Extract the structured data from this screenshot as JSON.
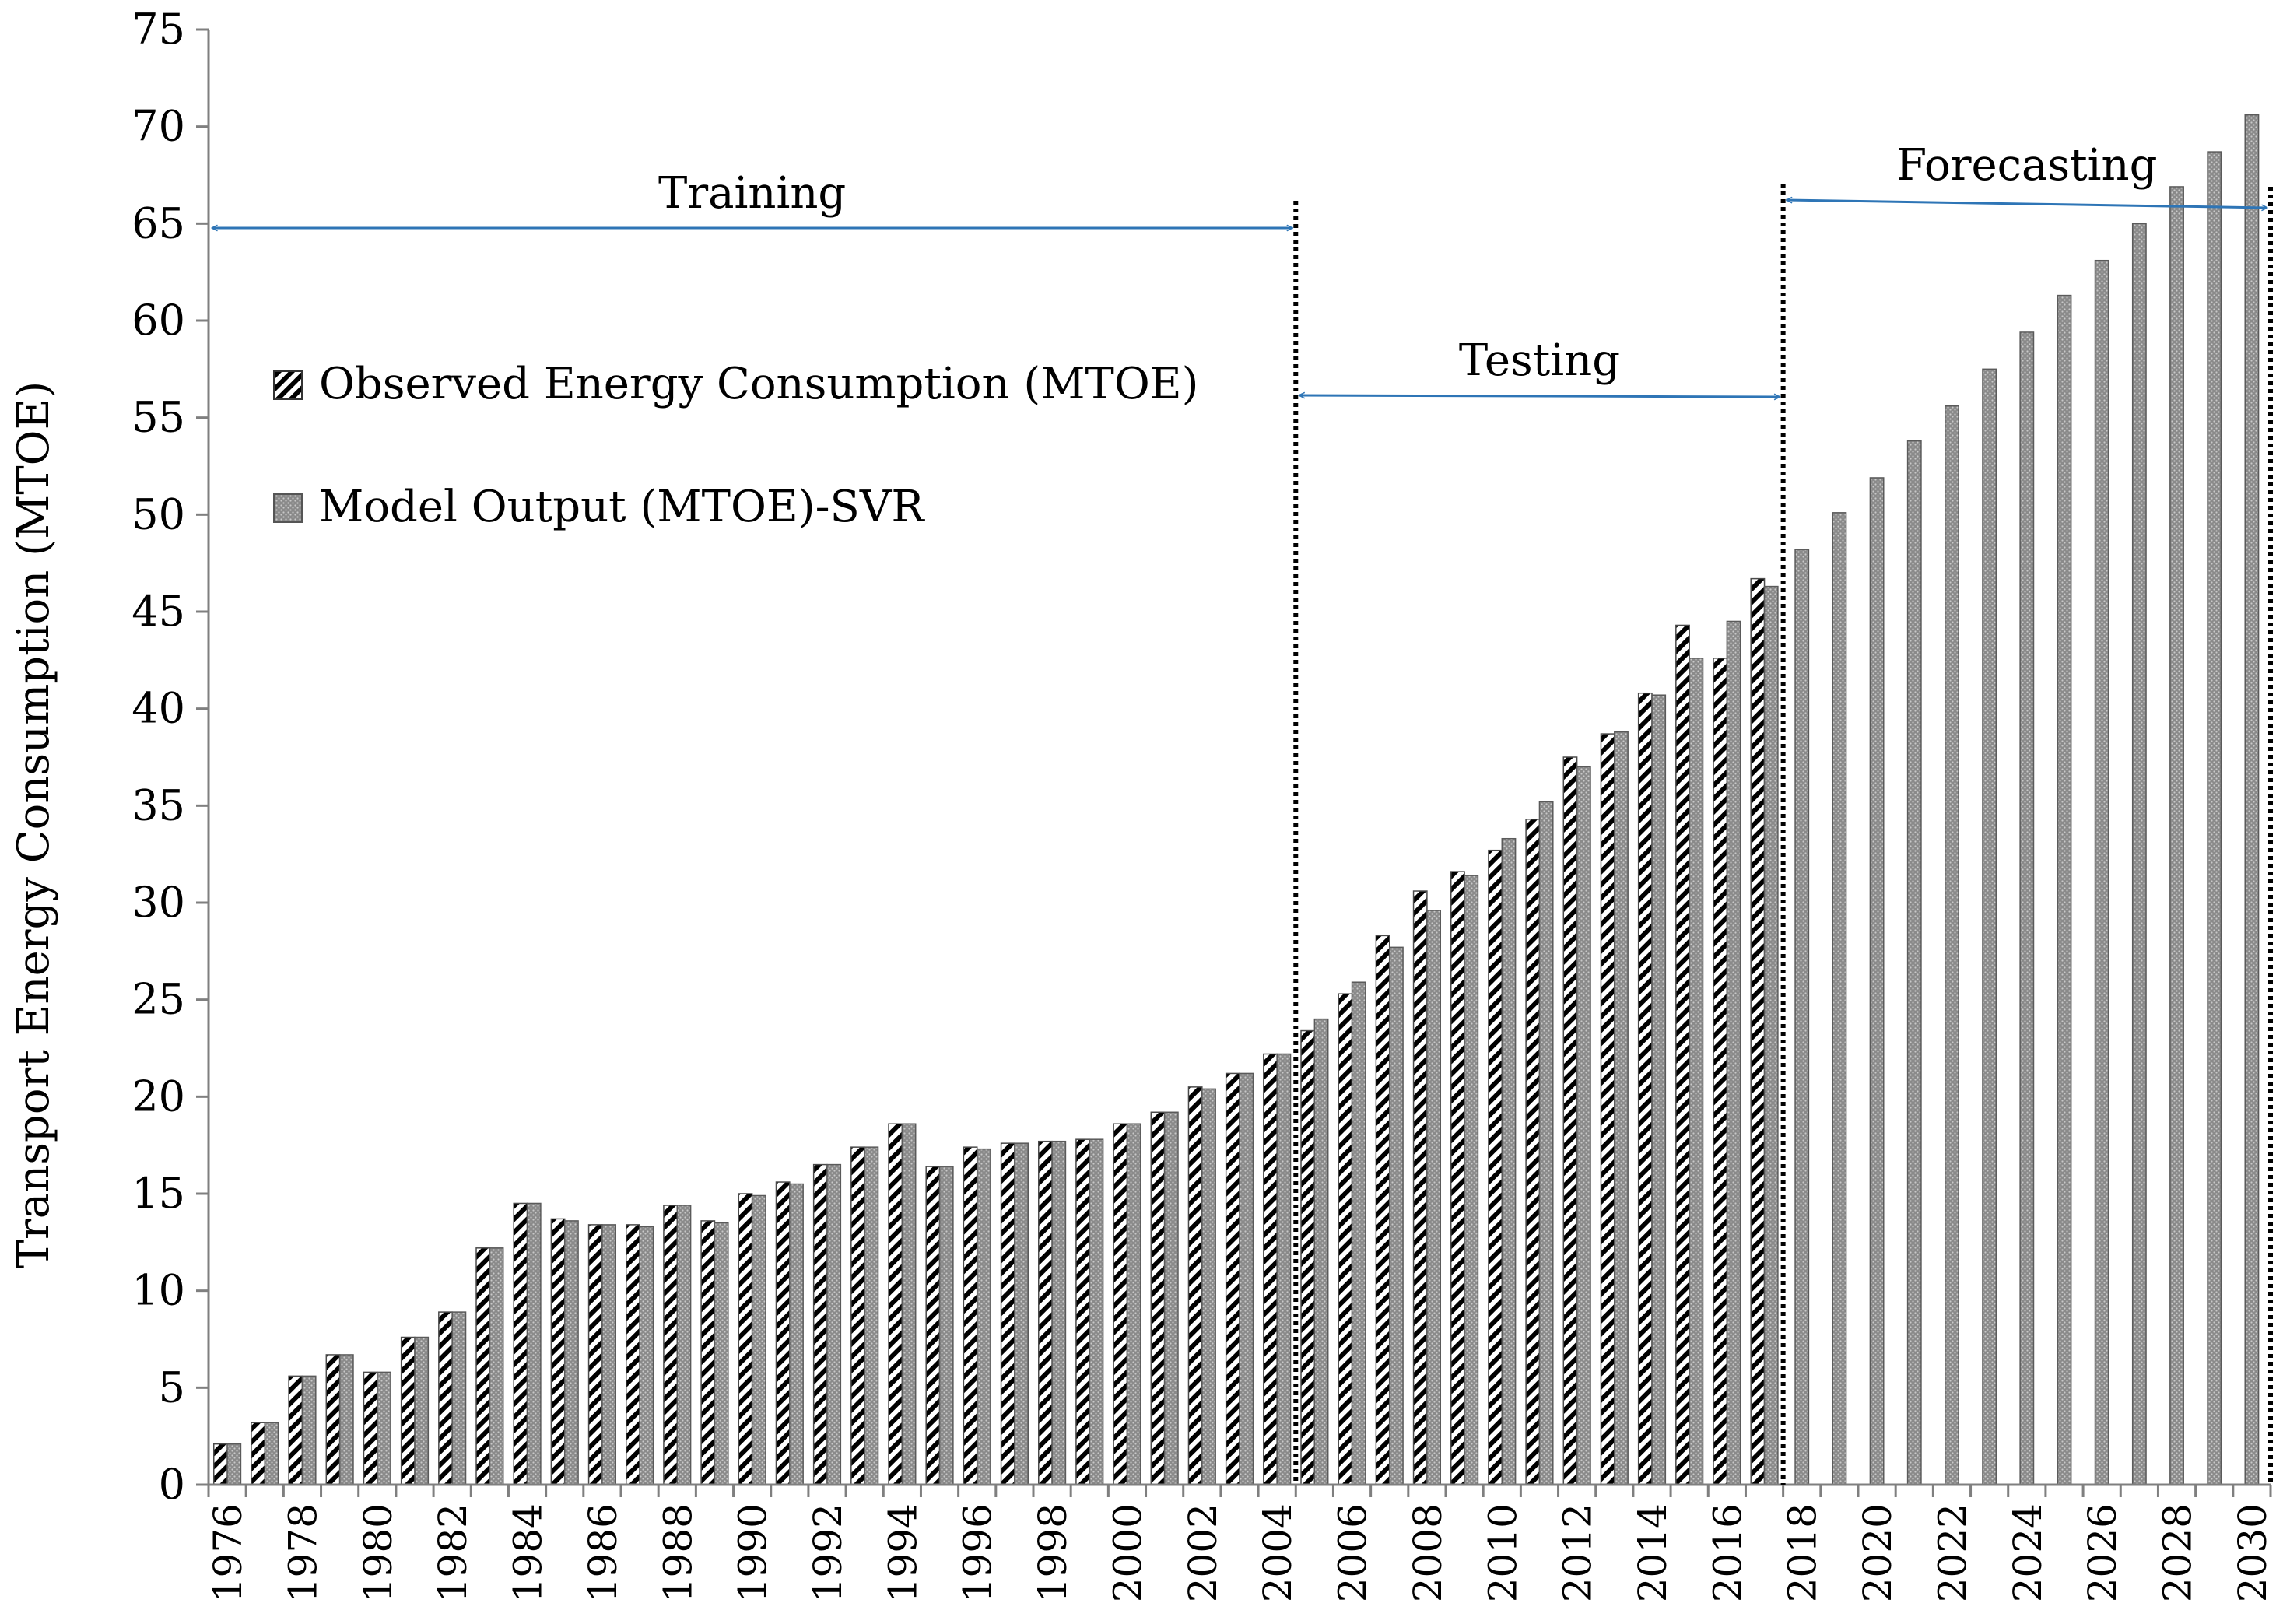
{
  "chart_data": {
    "type": "bar",
    "title": "",
    "xlabel": "",
    "ylabel": "Transport Energy Consumption (MTOE)",
    "ylim": [
      0,
      75
    ],
    "yticks": [
      0,
      5,
      10,
      15,
      20,
      25,
      30,
      35,
      40,
      45,
      50,
      55,
      60,
      65,
      70,
      75
    ],
    "grid": false,
    "legend_position": "left",
    "categories": [
      "1976",
      "1977",
      "1978",
      "1979",
      "1980",
      "1981",
      "1982",
      "1983",
      "1984",
      "1985",
      "1986",
      "1987",
      "1988",
      "1989",
      "1990",
      "1991",
      "1992",
      "1993",
      "1994",
      "1995",
      "1996",
      "1997",
      "1998",
      "1999",
      "2000",
      "2001",
      "2002",
      "2003",
      "2004",
      "2005",
      "2006",
      "2007",
      "2008",
      "2009",
      "2010",
      "2011",
      "2012",
      "2013",
      "2014",
      "2015",
      "2016",
      "2017",
      "2018",
      "2019",
      "2020",
      "2021",
      "2022",
      "2023",
      "2024",
      "2025",
      "2026",
      "2027",
      "2028",
      "2029",
      "2030"
    ],
    "tick_labels": [
      "1976",
      "1978",
      "1980",
      "1982",
      "1984",
      "1986",
      "1988",
      "1990",
      "1992",
      "1994",
      "1996",
      "1998",
      "2000",
      "2002",
      "2004",
      "2006",
      "2008",
      "2010",
      "2012",
      "2014",
      "2016",
      "2018",
      "2020",
      "2022",
      "2024",
      "2026",
      "2028",
      "2030"
    ],
    "series": [
      {
        "name": "Observed Energy Consumption (MTOE)",
        "pattern": "hatch",
        "values": [
          2.1,
          3.2,
          5.6,
          6.7,
          5.8,
          7.6,
          8.9,
          12.2,
          14.5,
          13.7,
          13.4,
          13.4,
          14.4,
          13.6,
          15.0,
          15.6,
          16.5,
          17.4,
          18.6,
          16.4,
          17.4,
          17.6,
          17.7,
          17.8,
          18.6,
          19.2,
          20.5,
          21.2,
          22.2,
          23.4,
          25.3,
          28.3,
          30.6,
          31.6,
          32.7,
          34.3,
          37.5,
          38.7,
          40.8,
          44.3,
          42.6,
          46.7,
          null,
          null,
          null,
          null,
          null,
          null,
          null,
          null,
          null,
          null,
          null,
          null,
          null
        ]
      },
      {
        "name": "Model Output (MTOE)-SVR",
        "pattern": "dots",
        "values": [
          2.1,
          3.2,
          5.6,
          6.7,
          5.8,
          7.6,
          8.9,
          12.2,
          14.5,
          13.6,
          13.4,
          13.3,
          14.4,
          13.5,
          14.9,
          15.5,
          16.5,
          17.4,
          18.6,
          16.4,
          17.3,
          17.6,
          17.7,
          17.8,
          18.6,
          19.2,
          20.4,
          21.2,
          22.2,
          24.0,
          25.9,
          27.7,
          29.6,
          31.4,
          33.3,
          35.2,
          37.0,
          38.8,
          40.7,
          42.6,
          44.5,
          46.3,
          48.2,
          50.1,
          51.9,
          53.8,
          55.6,
          57.5,
          59.4,
          61.3,
          63.1,
          65.0,
          66.9,
          68.7,
          70.6
        ]
      }
    ],
    "annotations": [
      {
        "name": "training",
        "label": "Training",
        "from": "1976",
        "to": "2004"
      },
      {
        "name": "testing",
        "label": "Testing",
        "from": "2005",
        "to": "2017"
      },
      {
        "name": "forecasting",
        "label": "Forecasting",
        "from": "2018",
        "to": "2030"
      }
    ]
  },
  "colors": {
    "axis": "#7f7f7f",
    "bar_fill": "#8c8c8c",
    "bar_edge": "#5a5a5a",
    "arrow": "#2e75b6",
    "divider": "#000000"
  }
}
